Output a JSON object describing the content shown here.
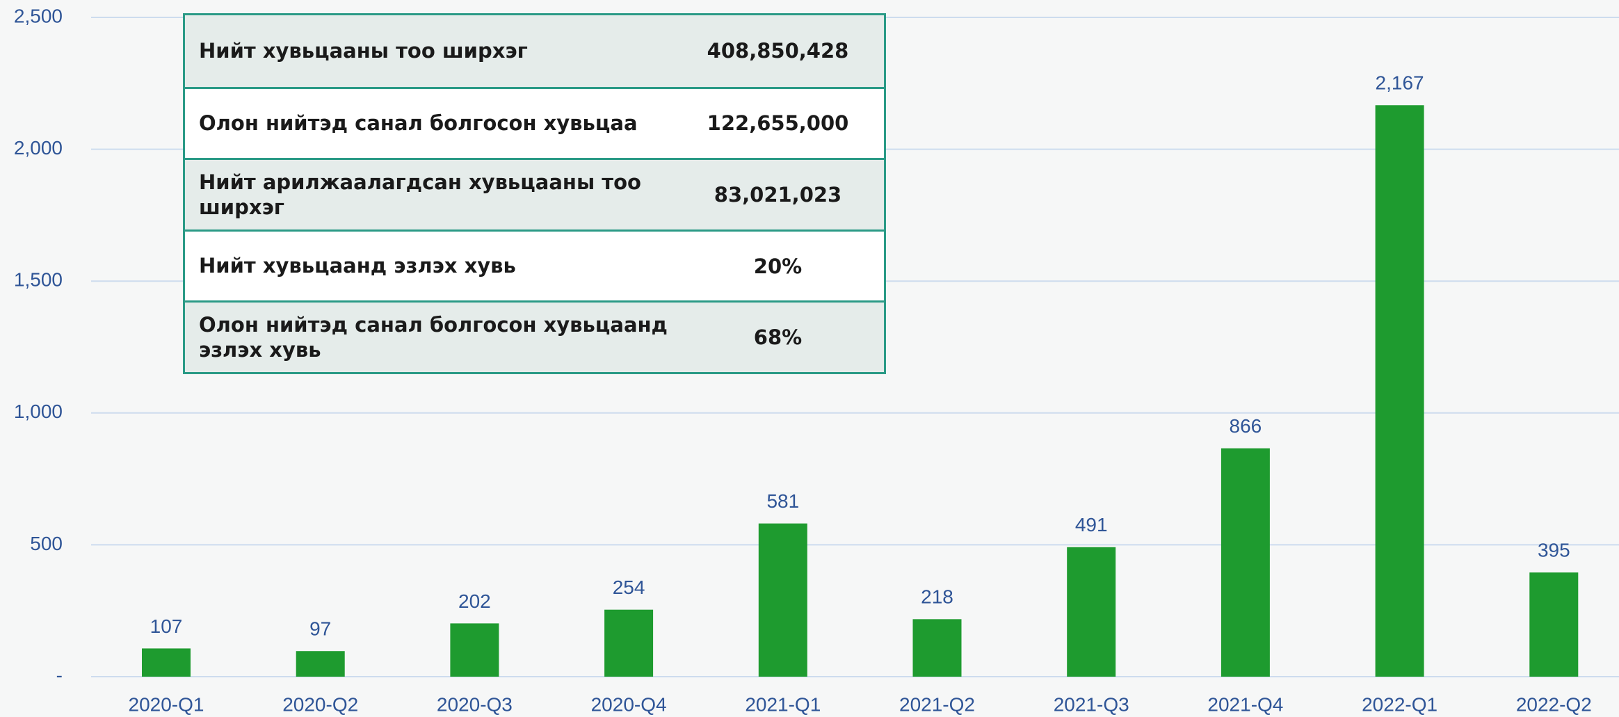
{
  "chart_data": {
    "type": "bar",
    "categories": [
      "2020-Q1",
      "2020-Q2",
      "2020-Q3",
      "2020-Q4",
      "2021-Q1",
      "2021-Q2",
      "2021-Q3",
      "2021-Q4",
      "2022-Q1",
      "2022-Q2"
    ],
    "values": [
      107,
      97,
      202,
      254,
      581,
      218,
      491,
      866,
      2167,
      395
    ],
    "value_labels": [
      "107",
      "97",
      "202",
      "254",
      "581",
      "218",
      "491",
      "866",
      "2,167",
      "395"
    ],
    "color": "#1e9b2f",
    "ylim": [
      0,
      2500
    ],
    "yticks": [
      {
        "value": 0,
        "label": "-"
      },
      500,
      {
        "value": 1000,
        "label": "1,000"
      },
      {
        "value": 1500,
        "label": "1,500"
      },
      {
        "value": 2000,
        "label": "2,000"
      },
      {
        "value": 2500,
        "label": "2,500"
      }
    ],
    "grid": true
  },
  "table": {
    "rows": [
      [
        "Нийт хувьцааны тоо ширхэг",
        "408,850,428"
      ],
      [
        "Олон нийтэд санал болгосон хувьцаа",
        "122,655,000"
      ],
      [
        "Нийт арилжаалагдсан хувьцааны тоо ширхэг",
        "83,021,023"
      ],
      [
        "Нийт хувьцаанд эзлэх хувь",
        "20%"
      ],
      [
        "Олон нийтэд санал болгосон хувьцаанд эзлэх хувь",
        "68%"
      ]
    ]
  }
}
